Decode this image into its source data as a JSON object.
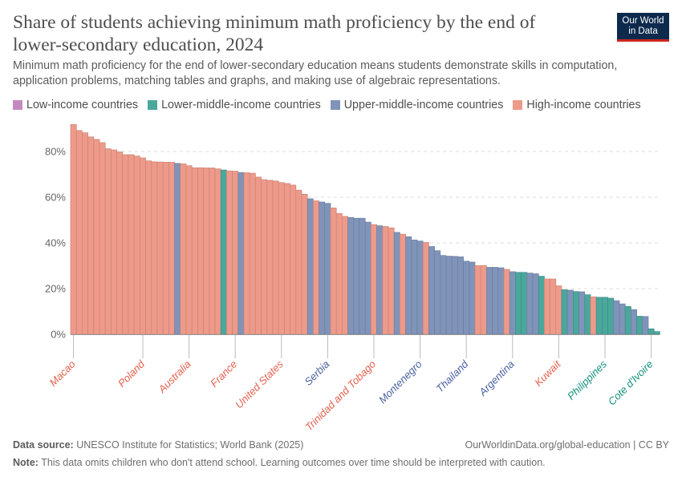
{
  "header": {
    "title": "Share of students achieving minimum math proficiency by the end of lower-secondary education, 2024",
    "subtitle": "Minimum math proficiency for the end of lower-secondary education means students demonstrate skills in computation, application problems, matching tables and graphs, and making use of algebraic representations.",
    "logo_line1": "Our World",
    "logo_line2": "in Data"
  },
  "legend": [
    {
      "key": "low",
      "label": "Low-income countries",
      "color": "#c48ac0"
    },
    {
      "key": "lower",
      "label": "Lower-middle-income countries",
      "color": "#4aa79c"
    },
    {
      "key": "upper",
      "label": "Upper-middle-income countries",
      "color": "#8094ba"
    },
    {
      "key": "high",
      "label": "High-income countries",
      "color": "#ee9a8a"
    }
  ],
  "label_colors": {
    "low": "#a35c9e",
    "lower": "#13917f",
    "upper": "#4b62a0",
    "high": "#e5604d"
  },
  "chart_data": {
    "type": "bar",
    "ylim": [
      0,
      100
    ],
    "yticks": [
      0,
      20,
      40,
      60,
      80
    ],
    "ytick_labels": [
      "0%",
      "20%",
      "40%",
      "60%",
      "80%"
    ],
    "grid": true,
    "values": [
      91.8,
      89.2,
      88.2,
      86.4,
      85.3,
      83.9,
      81.2,
      80.7,
      79.8,
      78.6,
      78.6,
      78.0,
      77.2,
      75.9,
      75.5,
      75.4,
      75.3,
      75.3,
      74.8,
      74.6,
      73.8,
      72.9,
      72.9,
      72.8,
      72.8,
      72.4,
      71.9,
      71.5,
      71.4,
      70.8,
      70.7,
      70.5,
      68.8,
      67.7,
      67.4,
      67.1,
      66.4,
      66.0,
      65.3,
      63.1,
      61.3,
      59.3,
      58.4,
      57.9,
      57.3,
      55.3,
      52.9,
      51.6,
      51.1,
      50.8,
      50.8,
      49.1,
      48.0,
      47.5,
      47.2,
      46.6,
      44.6,
      43.8,
      42.7,
      41.3,
      40.8,
      40.2,
      38.4,
      36.6,
      34.5,
      34.2,
      34.1,
      33.9,
      32.0,
      31.6,
      30.1,
      30.1,
      29.3,
      29.3,
      29.1,
      28.4,
      27.4,
      27.1,
      27.1,
      26.8,
      26.5,
      25.4,
      24.2,
      24.2,
      21.2,
      19.5,
      19.3,
      18.7,
      18.6,
      17.3,
      16.4,
      16.2,
      16.2,
      15.8,
      14.7,
      13.3,
      12.2,
      10.8,
      7.9,
      7.8,
      2.4,
      1.2
    ],
    "groups": [
      "high",
      "high",
      "high",
      "high",
      "high",
      "high",
      "high",
      "high",
      "high",
      "high",
      "high",
      "high",
      "high",
      "high",
      "high",
      "high",
      "high",
      "high",
      "upper",
      "high",
      "high",
      "high",
      "high",
      "high",
      "high",
      "high",
      "lower",
      "high",
      "high",
      "upper",
      "high",
      "high",
      "high",
      "high",
      "high",
      "high",
      "high",
      "high",
      "high",
      "high",
      "high",
      "upper",
      "high",
      "upper",
      "upper",
      "high",
      "high",
      "high",
      "upper",
      "upper",
      "upper",
      "upper",
      "high",
      "upper",
      "high",
      "high",
      "upper",
      "high",
      "upper",
      "upper",
      "upper",
      "high",
      "upper",
      "upper",
      "upper",
      "upper",
      "upper",
      "upper",
      "upper",
      "upper",
      "high",
      "high",
      "upper",
      "upper",
      "upper",
      "high",
      "upper",
      "lower",
      "lower",
      "upper",
      "upper",
      "lower",
      "high",
      "high",
      "high",
      "lower",
      "upper",
      "lower",
      "upper",
      "lower",
      "high",
      "lower",
      "lower",
      "lower",
      "upper",
      "upper",
      "lower",
      "upper",
      "lower",
      "upper",
      "lower",
      "lower"
    ],
    "category_labels": [
      {
        "bar": 1,
        "text": "Macao"
      },
      {
        "bar": 13,
        "text": "Poland"
      },
      {
        "bar": 21,
        "text": "Australia"
      },
      {
        "bar": 29,
        "text": "France"
      },
      {
        "bar": 37,
        "text": "United States"
      },
      {
        "bar": 45,
        "text": "Serbia"
      },
      {
        "bar": 53,
        "text": "Trinidad and Tobago"
      },
      {
        "bar": 61,
        "text": "Montenegro"
      },
      {
        "bar": 69,
        "text": "Thailand"
      },
      {
        "bar": 77,
        "text": "Argentina"
      },
      {
        "bar": 85,
        "text": "Kuwait"
      },
      {
        "bar": 93,
        "text": "Philippines"
      },
      {
        "bar": 101,
        "text": "Cote d'Ivoire"
      }
    ]
  },
  "footer": {
    "source_label": "Data source:",
    "source_text": "UNESCO Institute for Statistics; World Bank (2025)",
    "url": "OurWorldinData.org/global-education | CC BY",
    "note_label": "Note:",
    "note_text": "This data omits children who don't attend school. Learning outcomes over time should be interpreted with caution."
  }
}
